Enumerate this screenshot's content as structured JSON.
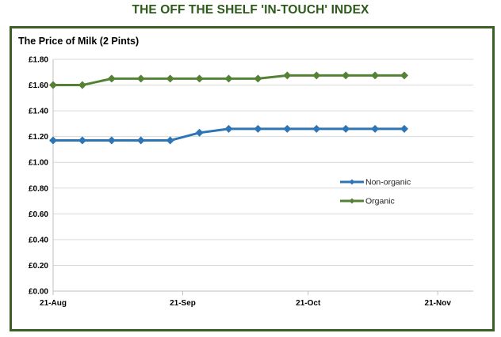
{
  "header": {
    "title": "THE OFF THE SHELF 'IN-TOUCH' INDEX"
  },
  "chart_data": {
    "type": "line",
    "title": "The Price of Milk (2 Pints)",
    "xlabel": "",
    "ylabel": "",
    "x_tick_labels": [
      "21-Aug",
      "21-Sep",
      "21-Oct",
      "21-Nov"
    ],
    "x_tick_dates": [
      "2015-08-21",
      "2015-09-21",
      "2015-10-21",
      "2015-11-21"
    ],
    "x": [
      "2015-08-21",
      "2015-08-28",
      "2015-09-04",
      "2015-09-11",
      "2015-09-18",
      "2015-09-25",
      "2015-10-02",
      "2015-10-09",
      "2015-10-16",
      "2015-10-23",
      "2015-10-30",
      "2015-11-06",
      "2015-11-13"
    ],
    "y_tick_labels": [
      "£0.00",
      "£0.20",
      "£0.40",
      "£0.60",
      "£0.80",
      "£1.00",
      "£1.20",
      "£1.40",
      "£1.60",
      "£1.80"
    ],
    "ylim": [
      0,
      1.8
    ],
    "series": [
      {
        "name": "Non-organic",
        "color": "#2e75b6",
        "marker": "diamond",
        "values": [
          1.17,
          1.17,
          1.17,
          1.17,
          1.17,
          1.23,
          1.26,
          1.26,
          1.26,
          1.26,
          1.26,
          1.26,
          1.26
        ]
      },
      {
        "name": "Organic",
        "color": "#548235",
        "marker": "diamond",
        "values": [
          1.6,
          1.6,
          1.65,
          1.65,
          1.65,
          1.65,
          1.65,
          1.65,
          1.675,
          1.675,
          1.675,
          1.675,
          1.675
        ]
      }
    ],
    "grid": "horizontal",
    "legend_position": "center-right"
  }
}
